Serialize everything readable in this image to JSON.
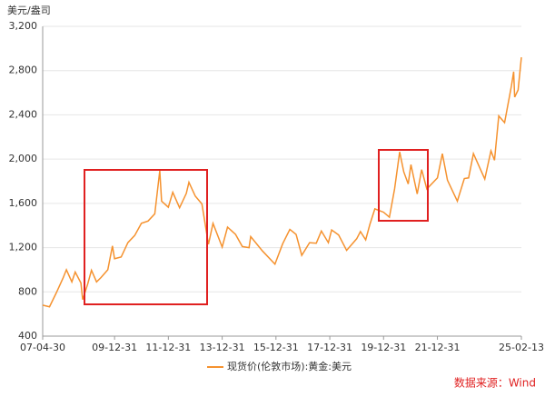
{
  "chart_data": {
    "type": "line",
    "y_label": "美元/盎司",
    "source": "数据来源：Wind",
    "x": [
      "07-04-30",
      "07-07-31",
      "07-10-31",
      "08-01-31",
      "08-03-17",
      "08-05-30",
      "08-07-15",
      "08-09-30",
      "08-10-24",
      "08-12-31",
      "09-02-20",
      "09-04-30",
      "09-06-30",
      "09-09-30",
      "09-12-02",
      "09-12-31",
      "10-03-31",
      "10-06-30",
      "10-09-30",
      "10-12-31",
      "11-03-31",
      "11-06-30",
      "11-09-05",
      "11-09-30",
      "11-12-31",
      "12-02-29",
      "12-05-31",
      "12-08-31",
      "12-10-05",
      "12-12-31",
      "13-03-31",
      "13-06-28",
      "13-08-28",
      "13-12-31",
      "14-03-14",
      "14-06-30",
      "14-09-30",
      "14-12-31",
      "15-01-22",
      "15-06-30",
      "15-12-17",
      "16-03-31",
      "16-07-06",
      "16-09-30",
      "16-12-15",
      "17-03-31",
      "17-06-30",
      "17-09-08",
      "17-12-12",
      "18-01-25",
      "18-04-30",
      "18-08-16",
      "18-12-31",
      "19-02-20",
      "19-05-02",
      "19-06-28",
      "19-09-04",
      "19-12-31",
      "20-03-19",
      "20-05-29",
      "20-08-06",
      "20-09-30",
      "20-11-30",
      "21-01-05",
      "21-03-31",
      "21-05-31",
      "21-08-09",
      "21-12-31",
      "22-03-08",
      "22-05-16",
      "22-09-28",
      "22-12-31",
      "23-02-28",
      "23-05-04",
      "23-10-05",
      "23-12-28",
      "24-02-14",
      "24-04-12",
      "24-06-30",
      "24-09-30",
      "24-10-31",
      "24-11-14",
      "24-12-31",
      "25-02-13"
    ],
    "series": [
      {
        "name": "现货价(伦敦市场):黄金:美元",
        "color": "#f5922f",
        "values": [
          680,
          665,
          790,
          925,
          1000,
          890,
          980,
          880,
          730,
          870,
          995,
          890,
          930,
          1000,
          1215,
          1100,
          1115,
          1245,
          1310,
          1420,
          1440,
          1505,
          1895,
          1620,
          1565,
          1700,
          1560,
          1690,
          1790,
          1665,
          1595,
          1230,
          1420,
          1205,
          1385,
          1320,
          1210,
          1200,
          1300,
          1170,
          1050,
          1235,
          1365,
          1320,
          1130,
          1245,
          1240,
          1350,
          1245,
          1360,
          1315,
          1175,
          1280,
          1345,
          1270,
          1410,
          1550,
          1520,
          1475,
          1730,
          2065,
          1885,
          1775,
          1950,
          1685,
          1905,
          1730,
          1830,
          2050,
          1810,
          1620,
          1825,
          1830,
          2050,
          1820,
          2075,
          1990,
          2390,
          2330,
          2660,
          2790,
          2560,
          2625,
          2920
        ]
      }
    ],
    "xticks": [
      "07-04-30",
      "09-12-31",
      "11-12-31",
      "13-12-31",
      "15-12-31",
      "17-12-31",
      "19-12-31",
      "21-12-31",
      "25-02-13"
    ],
    "ylim": [
      400,
      3200
    ],
    "yticks": [
      400,
      800,
      {
        "value": 1200,
        "label": "1,200"
      },
      {
        "value": 1600,
        "label": "1,600"
      },
      {
        "value": 2000,
        "label": "2,000"
      },
      {
        "value": 2400,
        "label": "2,400"
      },
      {
        "value": 2800,
        "label": "2,800"
      },
      {
        "value": 3200,
        "label": "3,200"
      }
    ],
    "grid": true
  }
}
